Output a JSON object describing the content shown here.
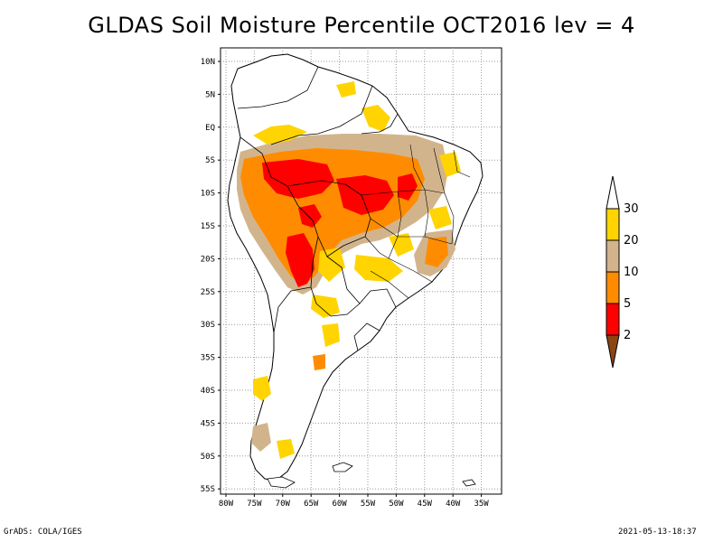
{
  "title": "GLDAS Soil Moisture Percentile OCT2016 lev = 4",
  "footer": {
    "left": "GrADS: COLA/IGES",
    "right": "2021-05-13-18:37"
  },
  "map": {
    "lat_labels": [
      "10N",
      "5N",
      "EQ",
      "5S",
      "10S",
      "15S",
      "20S",
      "25S",
      "30S",
      "35S",
      "40S",
      "45S",
      "50S",
      "55S"
    ],
    "lon_labels": [
      "80W",
      "75W",
      "70W",
      "65W",
      "60W",
      "55W",
      "50W",
      "45W",
      "40W",
      "35W"
    ]
  },
  "legend": {
    "labels": [
      "30",
      "20",
      "10",
      "5",
      "2"
    ],
    "colors": [
      "#ffffff",
      "#ffd400",
      "#d2b48c",
      "#ff8c00",
      "#ff0000",
      "#8b4513"
    ]
  }
}
